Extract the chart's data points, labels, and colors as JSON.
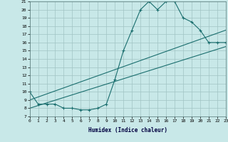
{
  "xlabel": "Humidex (Indice chaleur)",
  "bg_color": "#c8e8e8",
  "grid_color": "#a0c4c4",
  "line_color": "#1a6e6e",
  "xmin": 0,
  "xmax": 23,
  "ymin": 7,
  "ymax": 21,
  "curve1_x": [
    0,
    1,
    2,
    3,
    4,
    5,
    6,
    7,
    8,
    9,
    10,
    11,
    12,
    13,
    14,
    15,
    16,
    17,
    18,
    19,
    20,
    21,
    22,
    23
  ],
  "curve1_y": [
    10.0,
    8.5,
    8.5,
    8.5,
    8.0,
    8.0,
    7.8,
    7.8,
    8.0,
    8.5,
    11.5,
    15.0,
    17.5,
    20.0,
    21.0,
    20.0,
    21.0,
    21.0,
    19.0,
    18.5,
    17.5,
    16.0,
    16.0,
    16.0
  ],
  "curve2_x": [
    0,
    23
  ],
  "curve2_y": [
    9.0,
    17.5
  ],
  "curve3_x": [
    0,
    23
  ],
  "curve3_y": [
    8.0,
    15.5
  ]
}
